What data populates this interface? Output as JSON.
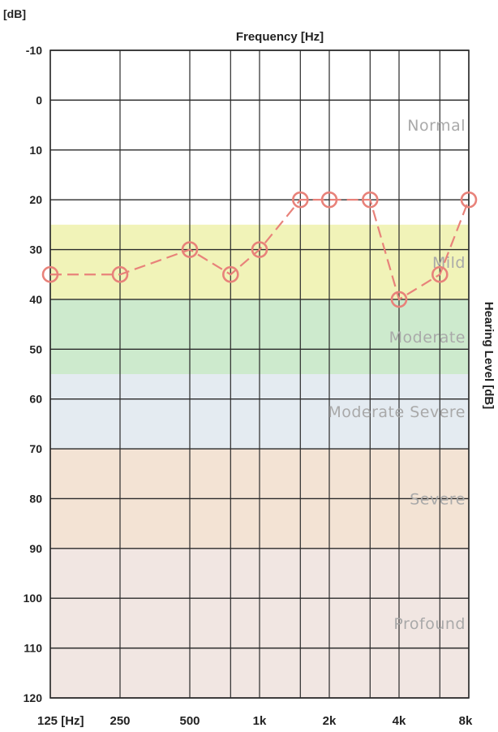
{
  "chart_data": {
    "type": "line",
    "unit_label": "[dB]",
    "title": "Frequency [Hz]",
    "ylabel": "Hearing Level [dB]",
    "x_ticks": [
      {
        "value": 125,
        "label": "125 [Hz]"
      },
      {
        "value": 250,
        "label": "250"
      },
      {
        "value": 500,
        "label": "500"
      },
      {
        "value": 1000,
        "label": "1k"
      },
      {
        "value": 2000,
        "label": "2k"
      },
      {
        "value": 4000,
        "label": "4k"
      },
      {
        "value": 8000,
        "label": "8k"
      }
    ],
    "x_gridlines": [
      125,
      250,
      500,
      750,
      1000,
      1500,
      2000,
      3000,
      4000,
      6000,
      8000
    ],
    "x_scale": "log",
    "xlim": [
      125,
      8000
    ],
    "ylim": [
      -10,
      120
    ],
    "y_inverted": true,
    "y_ticks": [
      -10,
      0,
      10,
      20,
      30,
      40,
      50,
      60,
      70,
      80,
      90,
      100,
      110,
      120
    ],
    "grid": true,
    "bands": [
      {
        "label": "Normal",
        "from": -10,
        "to": 25,
        "color": "#ffffff"
      },
      {
        "label": "Mild",
        "from": 25,
        "to": 40,
        "color": "#f1f3b8"
      },
      {
        "label": "Moderate",
        "from": 40,
        "to": 55,
        "color": "#cdeacd"
      },
      {
        "label": "Moderate Severe",
        "from": 55,
        "to": 70,
        "color": "#e4ebf1"
      },
      {
        "label": "Severe",
        "from": 70,
        "to": 90,
        "color": "#f3e3d4"
      },
      {
        "label": "Profound",
        "from": 90,
        "to": 120,
        "color": "#f1e6e2"
      }
    ],
    "series": [
      {
        "marker": "circle",
        "color": "#e8827a",
        "points": [
          {
            "x": 125,
            "y": 35
          },
          {
            "x": 250,
            "y": 35
          },
          {
            "x": 500,
            "y": 30
          },
          {
            "x": 750,
            "y": 35
          },
          {
            "x": 1000,
            "y": 30
          },
          {
            "x": 1500,
            "y": 20
          },
          {
            "x": 2000,
            "y": 20
          },
          {
            "x": 3000,
            "y": 20
          },
          {
            "x": 4000,
            "y": 40
          },
          {
            "x": 6000,
            "y": 35
          },
          {
            "x": 8000,
            "y": 20
          }
        ]
      }
    ]
  }
}
